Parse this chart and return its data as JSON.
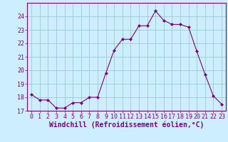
{
  "x": [
    0,
    1,
    2,
    3,
    4,
    5,
    6,
    7,
    8,
    9,
    10,
    11,
    12,
    13,
    14,
    15,
    16,
    17,
    18,
    19,
    20,
    21,
    22,
    23
  ],
  "y": [
    18.2,
    17.8,
    17.8,
    17.2,
    17.2,
    17.6,
    17.6,
    18.0,
    18.0,
    19.8,
    21.5,
    22.3,
    22.3,
    23.3,
    23.3,
    24.4,
    23.7,
    23.4,
    23.4,
    23.2,
    21.4,
    19.7,
    18.1,
    17.5
  ],
  "line_color": "#800080",
  "marker": "D",
  "marker_size": 2.0,
  "bg_color": "#cceeff",
  "grid_color": "#99cccc",
  "xlabel": "Windchill (Refroidissement éolien,°C)",
  "xlabel_color": "#800080",
  "tick_color": "#800080",
  "spine_color": "#800080",
  "ylim": [
    17,
    25
  ],
  "yticks": [
    17,
    18,
    19,
    20,
    21,
    22,
    23,
    24
  ],
  "xlim": [
    -0.5,
    23.5
  ],
  "xticks": [
    0,
    1,
    2,
    3,
    4,
    5,
    6,
    7,
    8,
    9,
    10,
    11,
    12,
    13,
    14,
    15,
    16,
    17,
    18,
    19,
    20,
    21,
    22,
    23
  ],
  "tick_fontsize": 6,
  "xlabel_fontsize": 7
}
